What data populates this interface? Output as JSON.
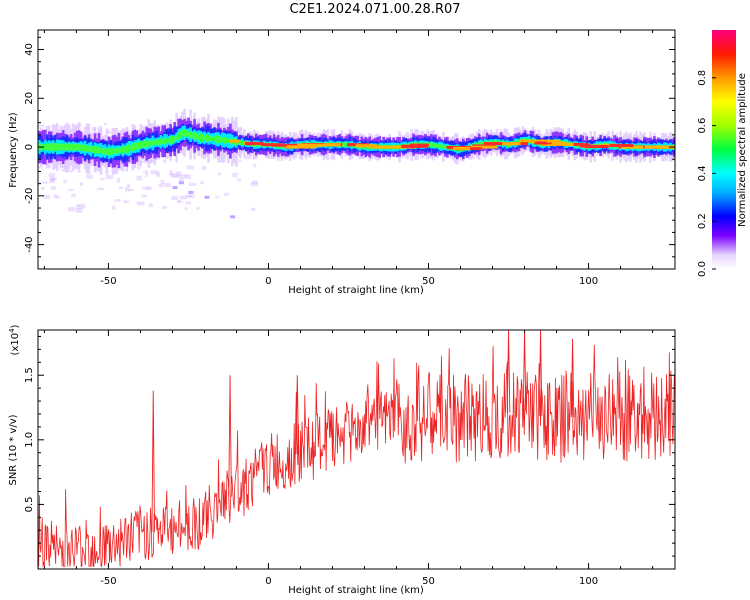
{
  "title": "C2E1.2024.071.00.28.R07",
  "colors": {
    "snr_line": "#ee2222",
    "axis": "#000000",
    "background": "#ffffff"
  },
  "chart_data": [
    {
      "type": "heatmap",
      "xlabel": "Height of straight line (km)",
      "ylabel": "Frequency (Hz)",
      "xlim": [
        -72,
        127
      ],
      "ylim": [
        -50,
        48
      ],
      "xticks": [
        -50,
        0,
        50,
        100
      ],
      "yticks": [
        -40,
        -20,
        0,
        20,
        40
      ],
      "colorbar": {
        "label": "Normalized spectral amplitude",
        "range": [
          0,
          1
        ],
        "ticks": [
          0.0,
          0.2,
          0.4,
          0.6,
          0.8
        ],
        "tick_labels": [
          "0.0",
          "0.2",
          "0.4",
          "0.6",
          "0.8"
        ]
      },
      "center_frequency_trace": {
        "x": [
          -72,
          -60,
          -50,
          -45,
          -40,
          -35,
          -30,
          -27,
          -22,
          -15,
          -10,
          -5,
          0,
          5,
          10,
          15,
          20,
          25,
          30,
          35,
          40,
          45,
          50,
          55,
          60,
          65,
          70,
          75,
          80,
          85,
          90,
          95,
          100,
          105,
          110,
          115,
          120,
          127
        ],
        "y": [
          0,
          0,
          -2,
          -1,
          1,
          2,
          3,
          6,
          4,
          3,
          2,
          1,
          1,
          0,
          1,
          1,
          1,
          1,
          0,
          0,
          0,
          1,
          1,
          0,
          -1,
          1,
          2,
          1,
          3,
          1,
          2,
          1,
          0,
          1,
          0,
          0,
          0,
          0
        ]
      }
    },
    {
      "type": "line",
      "xlabel": "Height of straight line (km)",
      "ylabel": "SNR (10 * v/v)",
      "y_multiplier_label": "(x10",
      "y_multiplier_exponent": "4",
      "xlim": [
        -72,
        127
      ],
      "ylim": [
        0,
        1.85
      ],
      "xticks": [
        -50,
        0,
        50,
        100
      ],
      "yticks": [
        0.5,
        1.0,
        1.5
      ],
      "ytick_labels": [
        "0.5",
        "1.0",
        "1.5"
      ],
      "trend": {
        "x": [
          -72,
          -50,
          -40,
          -30,
          -20,
          -15,
          -10,
          -5,
          0,
          5,
          10,
          20,
          30,
          40,
          50,
          60,
          70,
          80,
          90,
          100,
          110,
          127
        ],
        "y": [
          0.12,
          0.18,
          0.28,
          0.3,
          0.38,
          0.5,
          0.6,
          0.7,
          0.8,
          0.85,
          0.9,
          1.0,
          1.1,
          1.15,
          1.18,
          1.16,
          1.2,
          1.22,
          1.15,
          1.2,
          1.18,
          1.2
        ]
      },
      "spikes": [
        {
          "x": -36,
          "y": 1.38
        },
        {
          "x": -12,
          "y": 1.5
        },
        {
          "x": 9,
          "y": 1.5
        },
        {
          "x": 75,
          "y": 1.85
        },
        {
          "x": 80,
          "y": 1.85
        },
        {
          "x": 85,
          "y": 1.85
        },
        {
          "x": 95,
          "y": 1.78
        }
      ]
    }
  ]
}
